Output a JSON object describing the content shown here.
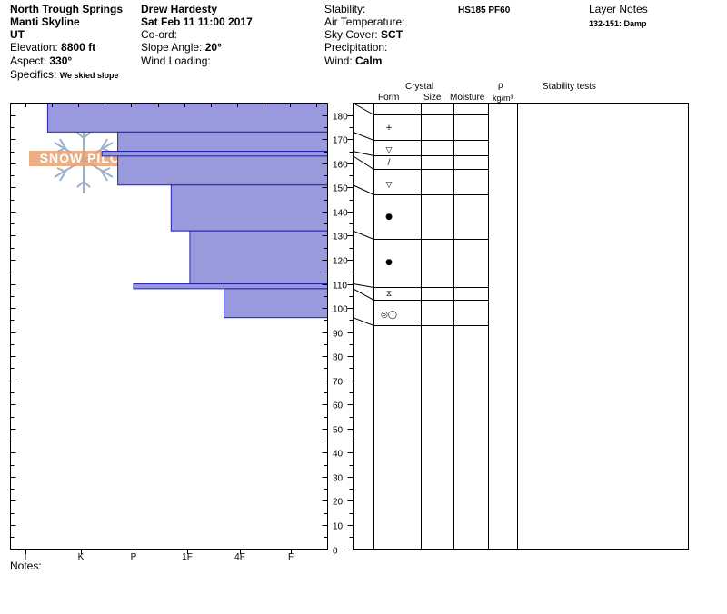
{
  "header": {
    "location": "North Trough Springs",
    "range": "Manti Skyline",
    "state": "UT",
    "elevation_label": "Elevation:",
    "elevation_value": "8800 ft",
    "aspect_label": "Aspect:",
    "aspect_value": "330°",
    "specifics_label": "Specifics:",
    "specifics_value": "We skied slope",
    "observer": "Drew Hardesty",
    "datetime": "Sat Feb 11 11:00 2017",
    "coord_label": "Co-ord:",
    "slope_label": "Slope Angle:",
    "slope_value": "20°",
    "wind_loading_label": "Wind Loading:",
    "stability_label": "Stability:",
    "air_temp_label": "Air Temperature:",
    "sky_label": "Sky Cover:",
    "sky_value": "SCT",
    "precip_label": "Precipitation:",
    "wind_label": "Wind:",
    "wind_value": "Calm",
    "hs_value": "HS185 PF60",
    "layer_notes_title": "Layer Notes",
    "layer_note": "132-151: Damp"
  },
  "watermark": {
    "text": "SNOW PILOT",
    "icon": "snowflake-icon"
  },
  "table_headers": {
    "crystal": "Crystal",
    "form": "Form",
    "size": "Size",
    "moisture": "Moisture",
    "rho": "ρ",
    "density_unit": "kg/m³",
    "stability_tests": "Stability tests"
  },
  "notes_label": "Notes:",
  "colors": {
    "bar_fill": "#9999dd",
    "bar_stroke": "#2222aa",
    "wm_orange": "#e8a070",
    "wm_blue": "#9ab0cc"
  },
  "chart_data": {
    "type": "bar",
    "orientation": "horizontal",
    "y_axis": {
      "min": 0,
      "max": 185,
      "tick_step": 10
    },
    "hardness_scale": [
      "I",
      "K",
      "P",
      "1F",
      "4F",
      "F"
    ],
    "layers": [
      {
        "top": 185,
        "bottom": 173,
        "hardness": 0.4
      },
      {
        "top": 173,
        "bottom": 165,
        "hardness": 1.7
      },
      {
        "top": 165,
        "bottom": 163,
        "hardness": 1.4
      },
      {
        "top": 163,
        "bottom": 151,
        "hardness": 1.7
      },
      {
        "top": 151,
        "bottom": 132,
        "hardness": 2.7
      },
      {
        "top": 132,
        "bottom": 110,
        "hardness": 3.05
      },
      {
        "top": 110,
        "bottom": 108,
        "hardness": 2.0
      },
      {
        "top": 108,
        "bottom": 96,
        "hardness": 3.7
      }
    ],
    "grain_symbols": [
      {
        "height": 180,
        "symbol": "+",
        "name": "precip-particles-icon"
      },
      {
        "height": 169,
        "symbol": "▽",
        "name": "surface-hoar-icon"
      },
      {
        "height": 164,
        "symbol": "/",
        "name": "decomposing-icon"
      },
      {
        "height": 156,
        "symbol": "▽",
        "name": "surface-hoar-icon"
      },
      {
        "height": 142,
        "symbol": "●",
        "name": "rounded-grains-icon"
      },
      {
        "height": 124,
        "symbol": "●",
        "name": "rounded-grains-icon"
      },
      {
        "height": 109,
        "symbol": "⧖",
        "name": "depth-hoar-icon"
      },
      {
        "height": 101,
        "symbol": "◎◯",
        "name": "melt-forms-icon"
      }
    ]
  }
}
